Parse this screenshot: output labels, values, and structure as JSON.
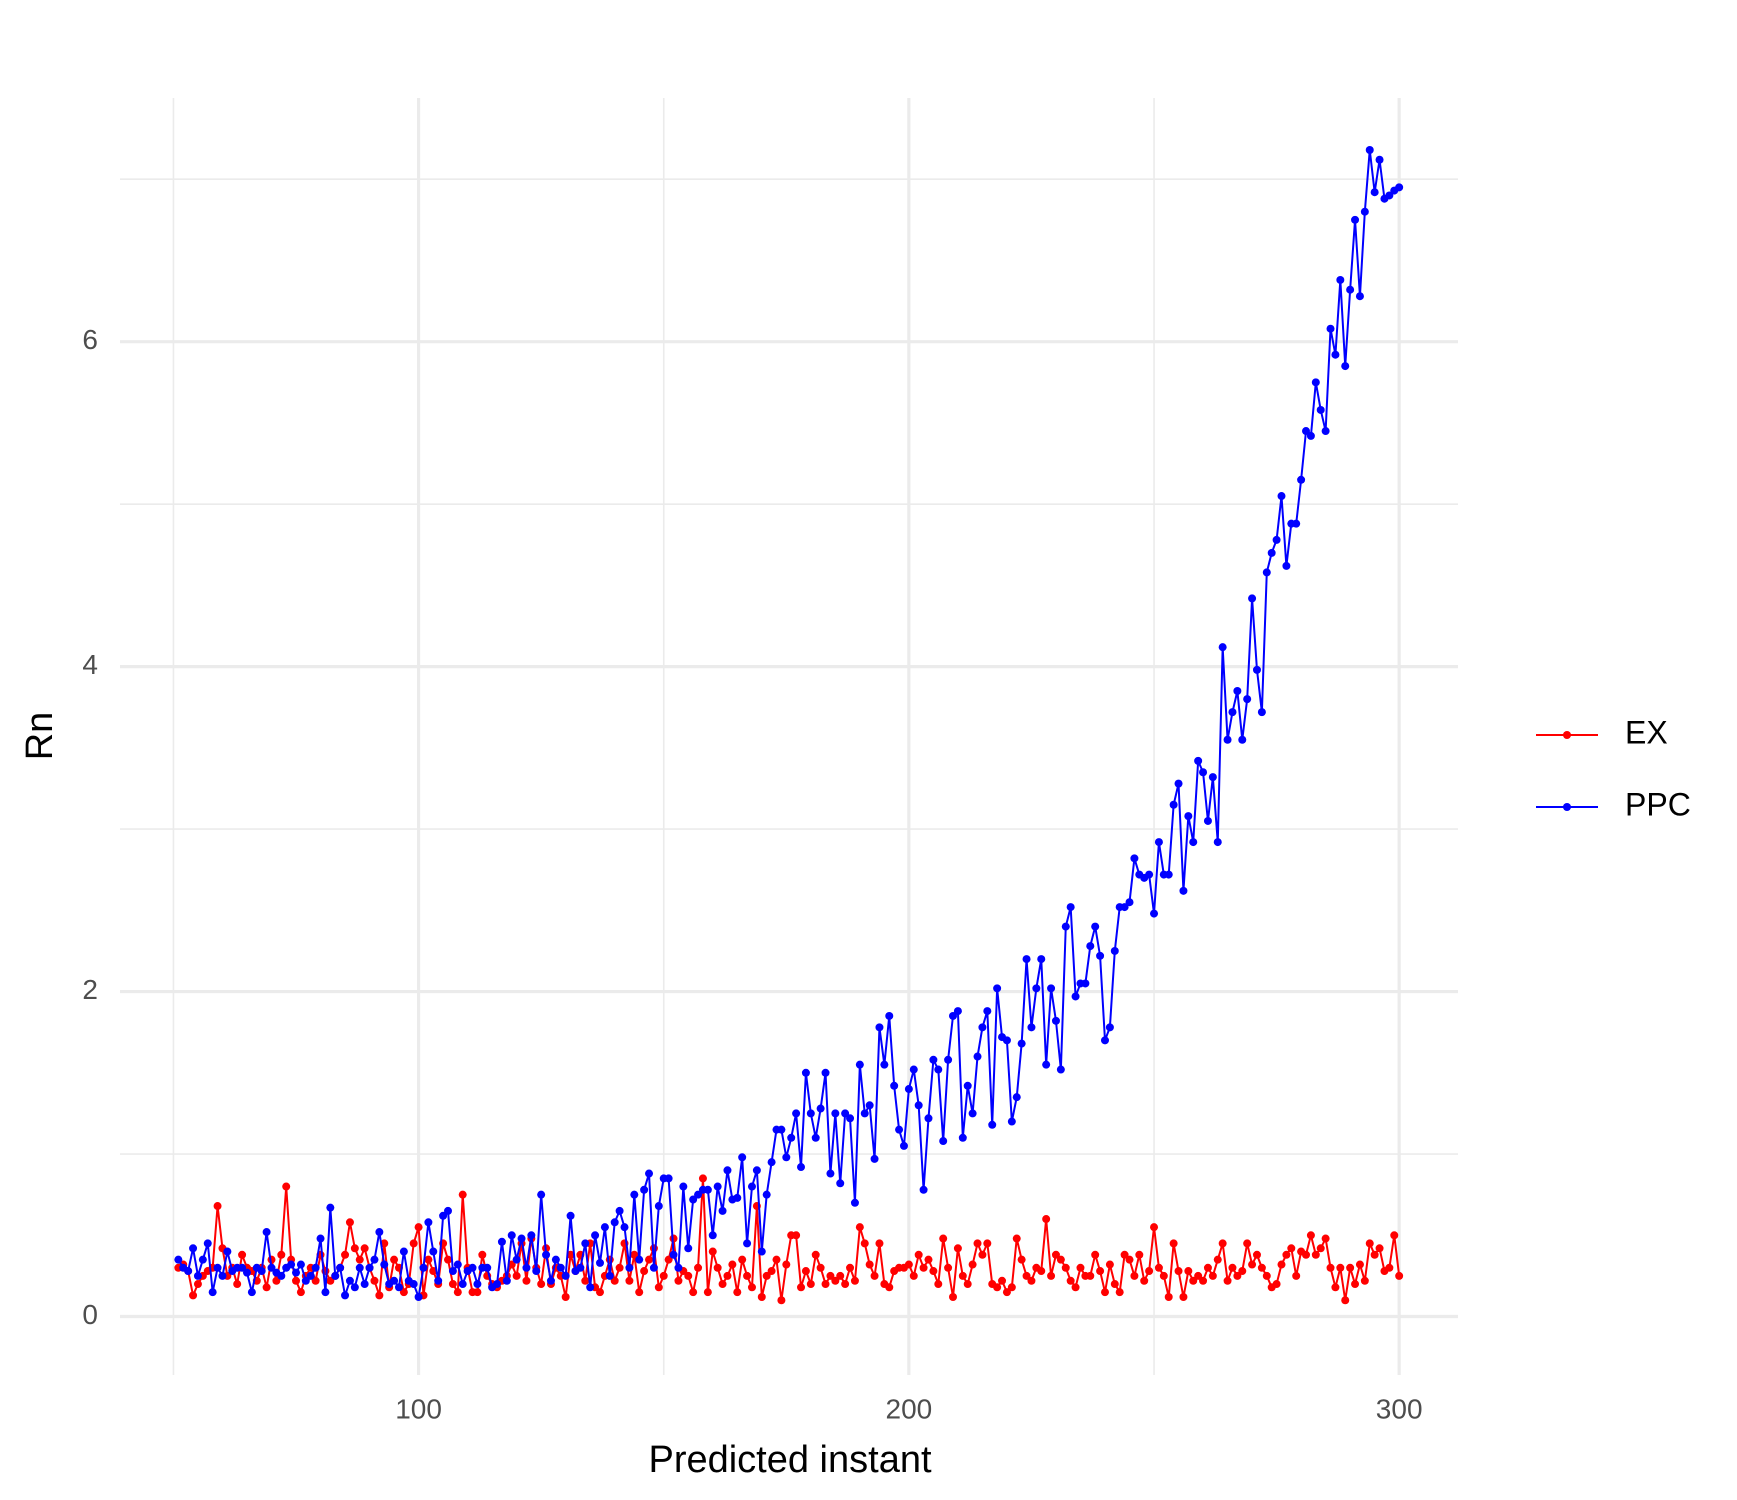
{
  "chart_data": {
    "type": "line",
    "x_label": "Predicted instant",
    "y_label": "Rn",
    "x": [
      51,
      52,
      53,
      54,
      55,
      56,
      57,
      58,
      59,
      60,
      61,
      62,
      63,
      64,
      65,
      66,
      67,
      68,
      69,
      70,
      71,
      72,
      73,
      74,
      75,
      76,
      77,
      78,
      79,
      80,
      81,
      82,
      83,
      84,
      85,
      86,
      87,
      88,
      89,
      90,
      91,
      92,
      93,
      94,
      95,
      96,
      97,
      98,
      99,
      100,
      101,
      102,
      103,
      104,
      105,
      106,
      107,
      108,
      109,
      110,
      111,
      112,
      113,
      114,
      115,
      116,
      117,
      118,
      119,
      120,
      121,
      122,
      123,
      124,
      125,
      126,
      127,
      128,
      129,
      130,
      131,
      132,
      133,
      134,
      135,
      136,
      137,
      138,
      139,
      140,
      141,
      142,
      143,
      144,
      145,
      146,
      147,
      148,
      149,
      150,
      151,
      152,
      153,
      154,
      155,
      156,
      157,
      158,
      159,
      160,
      161,
      162,
      163,
      164,
      165,
      166,
      167,
      168,
      169,
      170,
      171,
      172,
      173,
      174,
      175,
      176,
      177,
      178,
      179,
      180,
      181,
      182,
      183,
      184,
      185,
      186,
      187,
      188,
      189,
      190,
      191,
      192,
      193,
      194,
      195,
      196,
      197,
      198,
      199,
      200,
      201,
      202,
      203,
      204,
      205,
      206,
      207,
      208,
      209,
      210,
      211,
      212,
      213,
      214,
      215,
      216,
      217,
      218,
      219,
      220,
      221,
      222,
      223,
      224,
      225,
      226,
      227,
      228,
      229,
      230,
      231,
      232,
      233,
      234,
      235,
      236,
      237,
      238,
      239,
      240,
      241,
      242,
      243,
      244,
      245,
      246,
      247,
      248,
      249,
      250,
      251,
      252,
      253,
      254,
      255,
      256,
      257,
      258,
      259,
      260,
      261,
      262,
      263,
      264,
      265,
      266,
      267,
      268,
      269,
      270,
      271,
      272,
      273,
      274,
      275,
      276,
      277,
      278,
      279,
      280,
      281,
      282,
      283,
      284,
      285,
      286,
      287,
      288,
      289,
      290,
      291,
      292,
      293,
      294,
      295,
      296,
      297,
      298,
      299,
      300
    ],
    "series": [
      {
        "name": "EX",
        "color": "#ff0000",
        "values": [
          0.3,
          0.32,
          0.28,
          0.13,
          0.2,
          0.25,
          0.28,
          0.3,
          0.68,
          0.42,
          0.25,
          0.3,
          0.2,
          0.38,
          0.3,
          0.28,
          0.22,
          0.3,
          0.18,
          0.35,
          0.22,
          0.38,
          0.8,
          0.35,
          0.22,
          0.15,
          0.25,
          0.3,
          0.22,
          0.38,
          0.28,
          0.22,
          0.25,
          0.3,
          0.38,
          0.58,
          0.42,
          0.35,
          0.42,
          0.3,
          0.22,
          0.13,
          0.45,
          0.18,
          0.35,
          0.3,
          0.15,
          0.2,
          0.45,
          0.55,
          0.13,
          0.35,
          0.28,
          0.2,
          0.45,
          0.35,
          0.2,
          0.15,
          0.75,
          0.3,
          0.15,
          0.15,
          0.38,
          0.25,
          0.2,
          0.18,
          0.22,
          0.25,
          0.32,
          0.25,
          0.45,
          0.22,
          0.48,
          0.3,
          0.2,
          0.42,
          0.2,
          0.3,
          0.25,
          0.12,
          0.38,
          0.28,
          0.38,
          0.22,
          0.45,
          0.18,
          0.15,
          0.25,
          0.35,
          0.22,
          0.3,
          0.45,
          0.22,
          0.38,
          0.15,
          0.28,
          0.35,
          0.42,
          0.18,
          0.25,
          0.35,
          0.48,
          0.22,
          0.28,
          0.25,
          0.15,
          0.3,
          0.85,
          0.15,
          0.4,
          0.3,
          0.2,
          0.25,
          0.32,
          0.15,
          0.35,
          0.25,
          0.18,
          0.68,
          0.12,
          0.25,
          0.28,
          0.35,
          0.1,
          0.32,
          0.5,
          0.5,
          0.18,
          0.28,
          0.2,
          0.38,
          0.3,
          0.2,
          0.25,
          0.22,
          0.25,
          0.2,
          0.3,
          0.22,
          0.55,
          0.45,
          0.32,
          0.25,
          0.45,
          0.2,
          0.18,
          0.28,
          0.3,
          0.3,
          0.32,
          0.25,
          0.38,
          0.3,
          0.35,
          0.28,
          0.2,
          0.48,
          0.3,
          0.12,
          0.42,
          0.25,
          0.2,
          0.32,
          0.45,
          0.38,
          0.45,
          0.2,
          0.18,
          0.22,
          0.15,
          0.18,
          0.48,
          0.35,
          0.25,
          0.22,
          0.3,
          0.28,
          0.6,
          0.25,
          0.38,
          0.35,
          0.3,
          0.22,
          0.18,
          0.3,
          0.25,
          0.25,
          0.38,
          0.28,
          0.15,
          0.32,
          0.2,
          0.15,
          0.38,
          0.35,
          0.25,
          0.38,
          0.22,
          0.28,
          0.55,
          0.3,
          0.25,
          0.12,
          0.45,
          0.28,
          0.12,
          0.28,
          0.22,
          0.25,
          0.22,
          0.3,
          0.25,
          0.35,
          0.45,
          0.22,
          0.3,
          0.25,
          0.28,
          0.45,
          0.32,
          0.38,
          0.3,
          0.25,
          0.18,
          0.2,
          0.32,
          0.38,
          0.42,
          0.25,
          0.4,
          0.38,
          0.5,
          0.38,
          0.42,
          0.48,
          0.3,
          0.18,
          0.3,
          0.1,
          0.3,
          0.2,
          0.32,
          0.22,
          0.45,
          0.38,
          0.42,
          0.28,
          0.3,
          0.5,
          0.25
        ]
      },
      {
        "name": "PPC",
        "color": "#0000ff",
        "values": [
          0.35,
          0.3,
          0.28,
          0.42,
          0.25,
          0.35,
          0.45,
          0.15,
          0.3,
          0.25,
          0.4,
          0.28,
          0.3,
          0.3,
          0.27,
          0.15,
          0.3,
          0.28,
          0.52,
          0.3,
          0.27,
          0.25,
          0.3,
          0.32,
          0.27,
          0.32,
          0.22,
          0.25,
          0.3,
          0.48,
          0.15,
          0.67,
          0.25,
          0.3,
          0.13,
          0.22,
          0.18,
          0.3,
          0.2,
          0.3,
          0.35,
          0.52,
          0.32,
          0.2,
          0.22,
          0.18,
          0.4,
          0.22,
          0.2,
          0.12,
          0.3,
          0.58,
          0.4,
          0.22,
          0.62,
          0.65,
          0.28,
          0.32,
          0.2,
          0.28,
          0.3,
          0.2,
          0.3,
          0.3,
          0.18,
          0.2,
          0.46,
          0.22,
          0.5,
          0.35,
          0.48,
          0.3,
          0.5,
          0.28,
          0.75,
          0.38,
          0.22,
          0.35,
          0.3,
          0.25,
          0.62,
          0.28,
          0.3,
          0.45,
          0.18,
          0.5,
          0.33,
          0.55,
          0.25,
          0.58,
          0.65,
          0.55,
          0.3,
          0.75,
          0.35,
          0.78,
          0.88,
          0.3,
          0.68,
          0.85,
          0.85,
          0.38,
          0.3,
          0.8,
          0.42,
          0.72,
          0.75,
          0.78,
          0.78,
          0.5,
          0.8,
          0.65,
          0.9,
          0.72,
          0.73,
          0.98,
          0.45,
          0.8,
          0.9,
          0.4,
          0.75,
          0.95,
          1.15,
          1.15,
          0.98,
          1.1,
          1.25,
          0.92,
          1.5,
          1.25,
          1.1,
          1.28,
          1.5,
          0.88,
          1.25,
          0.82,
          1.25,
          1.22,
          0.7,
          1.55,
          1.25,
          1.3,
          0.97,
          1.78,
          1.55,
          1.85,
          1.42,
          1.15,
          1.05,
          1.4,
          1.52,
          1.3,
          0.78,
          1.22,
          1.58,
          1.52,
          1.08,
          1.58,
          1.85,
          1.88,
          1.1,
          1.42,
          1.25,
          1.6,
          1.78,
          1.88,
          1.18,
          2.02,
          1.72,
          1.7,
          1.2,
          1.35,
          1.68,
          2.2,
          1.78,
          2.02,
          2.2,
          1.55,
          2.02,
          1.82,
          1.52,
          2.4,
          2.52,
          1.97,
          2.05,
          2.05,
          2.28,
          2.4,
          2.22,
          1.7,
          1.78,
          2.25,
          2.52,
          2.52,
          2.55,
          2.82,
          2.72,
          2.7,
          2.72,
          2.48,
          2.92,
          2.72,
          2.72,
          3.15,
          3.28,
          2.62,
          3.08,
          2.92,
          3.42,
          3.35,
          3.05,
          3.32,
          2.92,
          4.12,
          3.55,
          3.72,
          3.85,
          3.55,
          3.8,
          4.42,
          3.98,
          3.72,
          4.58,
          4.7,
          4.78,
          5.05,
          4.62,
          4.88,
          4.88,
          5.15,
          5.45,
          5.42,
          5.75,
          5.58,
          5.45,
          6.08,
          5.92,
          6.38,
          5.85,
          6.32,
          6.75,
          6.28,
          6.8,
          7.18,
          6.92,
          7.12,
          6.88,
          6.9,
          6.93,
          6.95
        ]
      }
    ],
    "xlim": [
      39.1,
      312
    ],
    "xticks": [
      100,
      200,
      300
    ],
    "xminor": [
      50,
      150,
      250
    ],
    "ylim": [
      -0.36,
      7.5
    ],
    "yticks": [
      0,
      2,
      4,
      6
    ],
    "yminor": [
      1,
      3,
      5,
      7
    ],
    "grid": true,
    "legend": "right"
  }
}
